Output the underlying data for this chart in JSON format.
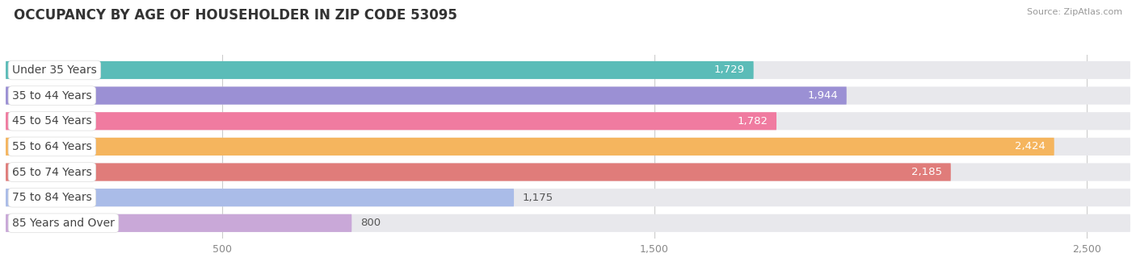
{
  "title": "OCCUPANCY BY AGE OF HOUSEHOLDER IN ZIP CODE 53095",
  "source": "Source: ZipAtlas.com",
  "categories": [
    "Under 35 Years",
    "35 to 44 Years",
    "45 to 54 Years",
    "55 to 64 Years",
    "65 to 74 Years",
    "75 to 84 Years",
    "85 Years and Over"
  ],
  "values": [
    1729,
    1944,
    1782,
    2424,
    2185,
    1175,
    800
  ],
  "bar_colors": [
    "#5bbcb8",
    "#9b90d4",
    "#f07ba0",
    "#f5b55e",
    "#e07c7a",
    "#aabce8",
    "#c9a8d8"
  ],
  "xlim_max": 2600,
  "xticks": [
    500,
    1500,
    2500
  ],
  "xtick_labels": [
    "500",
    "1,500",
    "2,500"
  ],
  "bar_height": 0.7,
  "background_color": "#ffffff",
  "bar_bg_color": "#e8e8ec",
  "title_fontsize": 12,
  "label_fontsize": 10,
  "value_fontsize": 9.5,
  "value_inside_threshold": 1400
}
